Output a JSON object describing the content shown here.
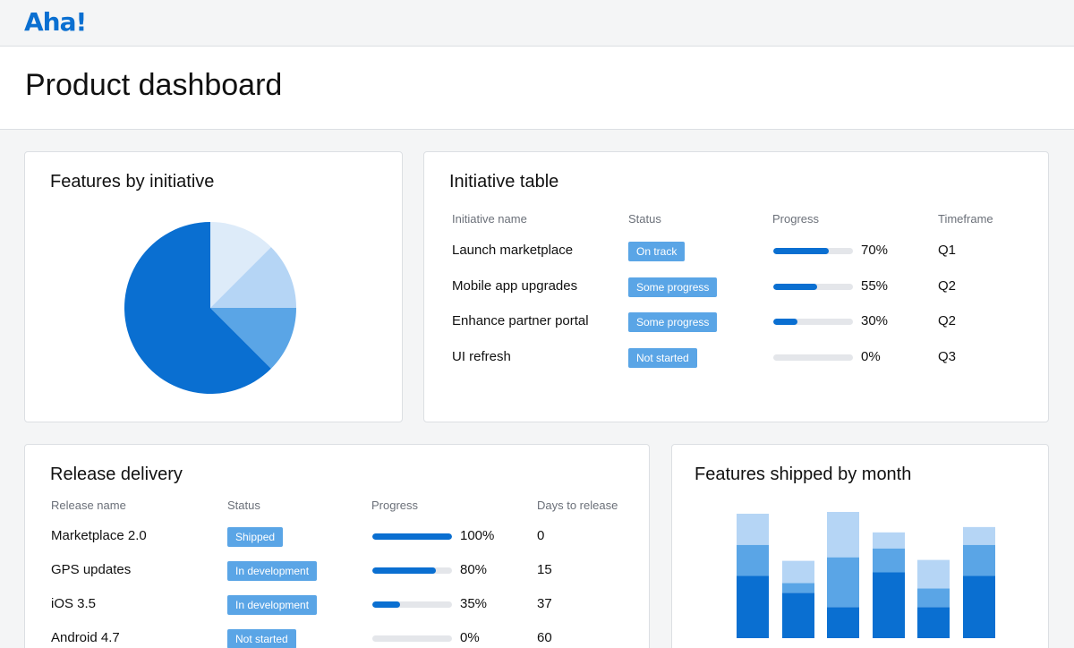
{
  "app": {
    "logo": "Aha!"
  },
  "header": {
    "title": "Product dashboard"
  },
  "colors": {
    "brand": "#0a6fd1",
    "badge": "#5aa5e6",
    "track": "#e4e6ea"
  },
  "features_by_initiative": {
    "title": "Features by initiative",
    "chart_data": {
      "type": "pie",
      "values": [
        62.5,
        12.5,
        12.5,
        12.5
      ],
      "colors": [
        "#0a6fd1",
        "#5aa5e6",
        "#b5d5f5",
        "#ddebf9"
      ]
    }
  },
  "initiative_table": {
    "title": "Initiative table",
    "headers": [
      "Initiative name",
      "Status",
      "Progress",
      "Timeframe"
    ],
    "rows": [
      {
        "name": "Launch marketplace",
        "status": "On track",
        "progress": 70,
        "progress_label": "70%",
        "timeframe": "Q1"
      },
      {
        "name": "Mobile app upgrades",
        "status": "Some progress",
        "progress": 55,
        "progress_label": "55%",
        "timeframe": "Q2"
      },
      {
        "name": "Enhance partner portal",
        "status": "Some progress",
        "progress": 30,
        "progress_label": "30%",
        "timeframe": "Q2"
      },
      {
        "name": "UI refresh",
        "status": "Not started",
        "progress": 0,
        "progress_label": "0%",
        "timeframe": "Q3"
      }
    ]
  },
  "release_delivery": {
    "title": "Release delivery",
    "headers": [
      "Release name",
      "Status",
      "Progress",
      "Days to release"
    ],
    "rows": [
      {
        "name": "Marketplace 2.0",
        "status": "Shipped",
        "progress": 100,
        "progress_label": "100%",
        "days": "0"
      },
      {
        "name": "GPS updates",
        "status": "In development",
        "progress": 80,
        "progress_label": "80%",
        "days": "15"
      },
      {
        "name": "iOS 3.5",
        "status": "In development",
        "progress": 35,
        "progress_label": "35%",
        "days": "37"
      },
      {
        "name": "Android 4.7",
        "status": "Not started",
        "progress": 0,
        "progress_label": "0%",
        "days": "60"
      }
    ]
  },
  "features_shipped": {
    "title": "Features shipped by month",
    "chart_data": {
      "type": "bar",
      "stacked": true,
      "categories": [
        "",
        "",
        "",
        "",
        "",
        ""
      ],
      "series": [
        {
          "values": [
            70,
            51,
            35,
            74,
            35,
            70
          ],
          "color": "#0a6fd1"
        },
        {
          "values": [
            35,
            11,
            56,
            27,
            21,
            35
          ],
          "color": "#5aa5e6"
        },
        {
          "values": [
            35,
            25,
            51,
            18,
            32,
            20
          ],
          "color": "#b5d5f5"
        }
      ],
      "ylim": [
        0,
        145
      ]
    }
  }
}
